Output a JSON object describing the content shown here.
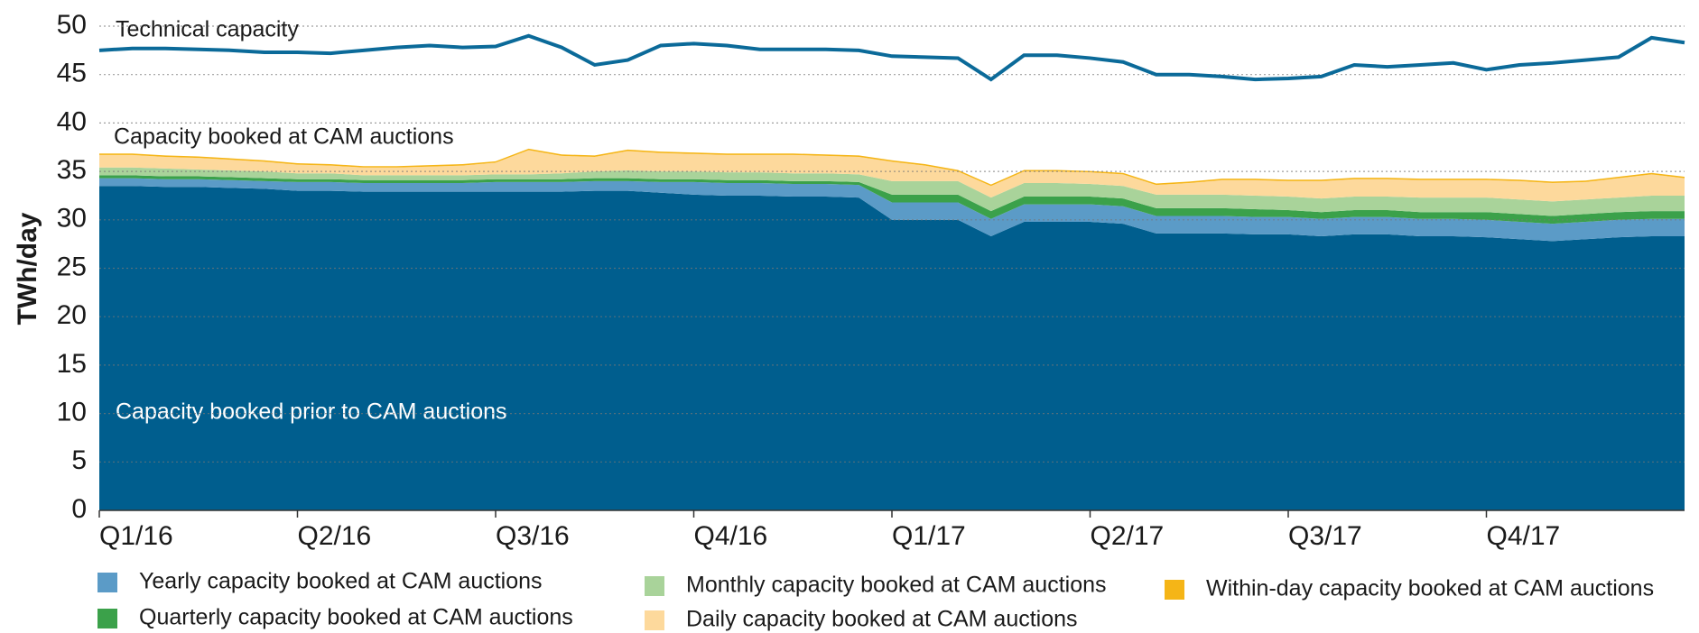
{
  "chart_data": {
    "type": "stacked_area_line",
    "ylabel": "TWh/day",
    "annotations": [
      "Technical capacity",
      "Capacity booked at CAM auctions",
      "Capacity booked prior to CAM auctions"
    ],
    "categories": [
      "Q1/16",
      null,
      null,
      null,
      null,
      null,
      "Q2/16",
      null,
      null,
      null,
      null,
      null,
      "Q3/16",
      null,
      null,
      null,
      null,
      null,
      "Q4/16",
      null,
      null,
      null,
      null,
      null,
      "Q1/17",
      null,
      null,
      null,
      null,
      null,
      "Q2/17",
      null,
      null,
      null,
      null,
      null,
      "Q3/17",
      null,
      null,
      null,
      null,
      null,
      "Q4/17",
      null,
      null,
      null,
      null,
      null,
      null
    ],
    "ylim": [
      0,
      50
    ],
    "yticks": [
      0,
      5,
      10,
      15,
      20,
      25,
      30,
      35,
      40,
      45,
      50
    ],
    "grid": true,
    "series": [
      {
        "name": "Capacity booked prior to CAM auctions",
        "color": "#005e8e",
        "values": [
          33.5,
          33.5,
          33.4,
          33.4,
          33.3,
          33.2,
          33.0,
          33.0,
          32.9,
          32.9,
          32.9,
          32.9,
          32.9,
          32.9,
          32.9,
          33.0,
          33.0,
          32.8,
          32.6,
          32.5,
          32.5,
          32.4,
          32.4,
          32.3,
          30.0,
          30.0,
          30.0,
          28.3,
          29.8,
          29.8,
          29.8,
          29.6,
          28.6,
          28.6,
          28.6,
          28.5,
          28.5,
          28.3,
          28.5,
          28.5,
          28.3,
          28.3,
          28.2,
          28.0,
          27.8,
          28.0,
          28.2,
          28.3,
          28.3
        ]
      },
      {
        "name": "Yearly capacity booked at CAM auctions",
        "color": "#5b9bc7",
        "values": [
          0.8,
          0.8,
          0.8,
          0.8,
          0.8,
          0.8,
          0.9,
          0.9,
          0.9,
          0.9,
          0.9,
          0.9,
          1.0,
          1.0,
          1.0,
          1.0,
          1.0,
          1.1,
          1.3,
          1.3,
          1.3,
          1.3,
          1.3,
          1.3,
          1.8,
          1.8,
          1.8,
          1.8,
          1.8,
          1.8,
          1.8,
          1.8,
          1.8,
          1.8,
          1.8,
          1.8,
          1.8,
          1.8,
          1.8,
          1.8,
          1.8,
          1.8,
          1.8,
          1.8,
          1.8,
          1.8,
          1.8,
          1.8,
          1.8
        ]
      },
      {
        "name": "Quarterly capacity booked at CAM auctions",
        "color": "#3ba14a",
        "values": [
          0.3,
          0.3,
          0.3,
          0.3,
          0.3,
          0.3,
          0.3,
          0.3,
          0.3,
          0.3,
          0.3,
          0.3,
          0.3,
          0.3,
          0.3,
          0.3,
          0.3,
          0.3,
          0.3,
          0.3,
          0.3,
          0.3,
          0.3,
          0.3,
          0.8,
          0.8,
          0.8,
          0.8,
          0.8,
          0.8,
          0.8,
          0.8,
          0.8,
          0.8,
          0.8,
          0.8,
          0.7,
          0.7,
          0.7,
          0.7,
          0.7,
          0.7,
          0.8,
          0.8,
          0.8,
          0.8,
          0.8,
          0.8,
          0.8
        ]
      },
      {
        "name": "Monthly capacity booked at CAM auctions",
        "color": "#a9d39a",
        "values": [
          0.8,
          0.8,
          0.8,
          0.7,
          0.7,
          0.7,
          0.6,
          0.6,
          0.5,
          0.5,
          0.5,
          0.5,
          0.5,
          0.5,
          0.6,
          0.7,
          0.8,
          0.8,
          0.8,
          0.8,
          0.8,
          0.8,
          0.8,
          0.8,
          1.4,
          1.4,
          1.4,
          1.4,
          1.4,
          1.4,
          1.3,
          1.3,
          1.4,
          1.4,
          1.4,
          1.4,
          1.4,
          1.4,
          1.4,
          1.4,
          1.5,
          1.5,
          1.5,
          1.5,
          1.5,
          1.5,
          1.5,
          1.6,
          1.6
        ]
      },
      {
        "name": "Daily capacity booked at CAM auctions",
        "color": "#fdd99c",
        "values": [
          1.3,
          1.3,
          1.2,
          1.2,
          1.1,
          1.0,
          0.9,
          0.8,
          0.8,
          0.8,
          0.9,
          1.0,
          1.2,
          2.5,
          1.8,
          1.5,
          2.0,
          1.9,
          1.8,
          1.8,
          1.8,
          1.9,
          1.8,
          1.8,
          2.0,
          1.6,
          1.0,
          1.2,
          1.2,
          1.2,
          1.2,
          1.2,
          1.0,
          1.2,
          1.5,
          1.6,
          1.6,
          1.8,
          1.8,
          1.8,
          1.8,
          1.8,
          1.8,
          1.9,
          1.9,
          1.8,
          2.0,
          2.2,
          1.8
        ]
      },
      {
        "name": "Within-day capacity booked at CAM auctions",
        "color": "#f5b517",
        "values": [
          0.15,
          0.15,
          0.15,
          0.15,
          0.15,
          0.15,
          0.15,
          0.15,
          0.15,
          0.15,
          0.15,
          0.15,
          0.15,
          0.15,
          0.15,
          0.15,
          0.15,
          0.15,
          0.15,
          0.15,
          0.15,
          0.15,
          0.15,
          0.15,
          0.15,
          0.15,
          0.15,
          0.15,
          0.15,
          0.15,
          0.15,
          0.15,
          0.15,
          0.15,
          0.15,
          0.15,
          0.15,
          0.15,
          0.15,
          0.15,
          0.15,
          0.15,
          0.15,
          0.15,
          0.15,
          0.15,
          0.15,
          0.15,
          0.15
        ]
      }
    ],
    "line": {
      "name": "Technical capacity",
      "color": "#0b6a99",
      "values": [
        47.5,
        47.7,
        47.7,
        47.6,
        47.5,
        47.3,
        47.3,
        47.2,
        47.5,
        47.8,
        48.0,
        47.8,
        47.9,
        49.0,
        47.8,
        46.0,
        46.5,
        48.0,
        48.2,
        48.0,
        47.6,
        47.6,
        47.6,
        47.5,
        46.9,
        46.8,
        46.7,
        44.5,
        47.0,
        47.0,
        46.7,
        46.3,
        45.0,
        45.0,
        44.8,
        44.5,
        44.6,
        44.8,
        46.0,
        45.8,
        46.0,
        46.2,
        45.5,
        46.0,
        46.2,
        46.5,
        46.8,
        48.8,
        48.3
      ]
    }
  }
}
